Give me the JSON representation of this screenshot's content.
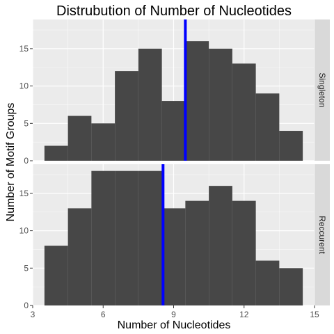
{
  "chart_data": {
    "type": "bar",
    "title": "Distrubution of Number of Nucleotides",
    "xlabel": "Number of Nucleotides",
    "ylabel": "Number of Motif Groups",
    "xlim": [
      3,
      15
    ],
    "ylim": [
      0,
      18.9
    ],
    "x_ticks": [
      3,
      6,
      9,
      12,
      15
    ],
    "y_ticks": [
      0,
      5,
      10,
      15
    ],
    "bin_width": 1,
    "bin_centers": [
      4,
      5,
      6,
      7,
      8,
      9,
      10,
      11,
      12,
      13,
      14
    ],
    "grid": true,
    "colors": {
      "bar": "#474747",
      "mean_line": "#0000ff",
      "panel_bg": "#ebebeb",
      "grid_major": "#ffffff",
      "strip_bg": "#d9d9d9"
    },
    "panels": [
      {
        "strip_label": "Singleton",
        "values": [
          2,
          6,
          5,
          12,
          15,
          8,
          16,
          15,
          13,
          9,
          4
        ],
        "mean_line_x": 9.5
      },
      {
        "strip_label": "Reccurent",
        "values": [
          8,
          13,
          18,
          18,
          18,
          13,
          14,
          16,
          14,
          6,
          5
        ],
        "mean_line_x": 8.55
      }
    ]
  }
}
